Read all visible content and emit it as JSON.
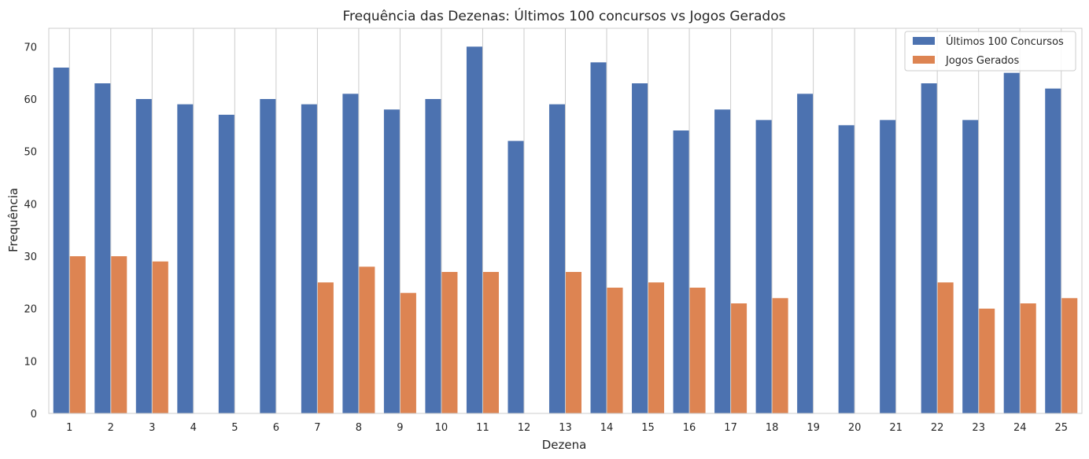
{
  "chart_data": {
    "type": "bar",
    "title": "Frequência das Dezenas: Últimos 100 concursos vs Jogos Gerados",
    "xlabel": "Dezena",
    "ylabel": "Frequência",
    "ylim": [
      0,
      73.5
    ],
    "yticks": [
      0,
      10,
      20,
      30,
      40,
      50,
      60,
      70
    ],
    "grid": "vertical",
    "legend_position": "top-right",
    "categories": [
      "1",
      "2",
      "3",
      "4",
      "5",
      "6",
      "7",
      "8",
      "9",
      "10",
      "11",
      "12",
      "13",
      "14",
      "15",
      "16",
      "17",
      "18",
      "19",
      "20",
      "21",
      "22",
      "23",
      "24",
      "25"
    ],
    "series": [
      {
        "name": "Últimos 100 Concursos",
        "color": "#4c72b0",
        "values": [
          66,
          63,
          60,
          59,
          57,
          60,
          59,
          61,
          58,
          60,
          70,
          52,
          59,
          67,
          63,
          54,
          58,
          56,
          61,
          55,
          56,
          63,
          56,
          65,
          62
        ]
      },
      {
        "name": "Jogos Gerados",
        "color": "#dd8452",
        "values": [
          30,
          30,
          29,
          0,
          0,
          0,
          25,
          28,
          23,
          27,
          27,
          0,
          27,
          24,
          25,
          24,
          21,
          22,
          0,
          0,
          0,
          25,
          20,
          21,
          22
        ]
      }
    ]
  }
}
